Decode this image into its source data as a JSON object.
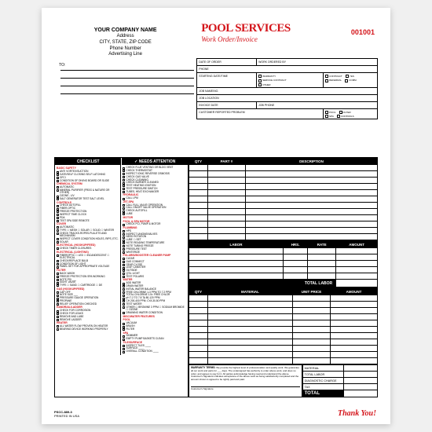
{
  "company": {
    "name": "YOUR COMPANY NAME",
    "address": "Address",
    "csz": "CITY, STATE, ZIP CODE",
    "phone": "Phone Number",
    "adline": "Advertising Line"
  },
  "title1": "POOL SERVICES",
  "title2": "Work Order/Invoice",
  "invoice_num": "001001",
  "to_label": "TO:",
  "meta": {
    "date_of_order": "DATE OF ORDER",
    "work_ordered_by": "WORK ORDERED BY",
    "phone": "PHONE",
    "starting": "STARTING DATE/TIME",
    "warranty": "WARRANTY",
    "service_contract": "SERVICE CONTRACT",
    "other": "OTHER",
    "contract": "CONTRACT",
    "yes": "YES",
    "referral": "REFERRAL",
    "comm": "COMM.",
    "job_name": "JOB NAME/NO.",
    "job_location": "JOB LOCATION",
    "invoice_date": "INVOICE DATE",
    "job_phone": "JOB PHONE",
    "customer_prob": "CUSTOMER REPORTED PROBLEM",
    "pool": "POOL",
    "spa": "SPA",
    "filter": "FILTER",
    "controls": "CONTROLS"
  },
  "headers": {
    "checklist": "CHECKLIST",
    "needs_attention": "NEEDS ATTENTION",
    "check_mark": "✓",
    "qty": "QTY",
    "part": "PART #",
    "description": "DESCRIPTION",
    "labor": "LABOR",
    "hrs": "HRS.",
    "rate": "RATE",
    "amount": "AMOUNT",
    "total_labor": "TOTAL LABOR",
    "material": "MATERIAL",
    "unit_price": "UNIT PRICE"
  },
  "checklist": {
    "col1": [
      {
        "cat": "BASIC SAFETY"
      },
      {
        "item": "ANTI VORTEX/SUCTION"
      },
      {
        "item": "GATE/SELF CLOSING SELF LATCHING"
      },
      {
        "item": "GFCI"
      },
      {
        "item": "CONDITION OF DIVING BOARD OR SLIDE"
      },
      {
        "cat": "CHEMICAL SYSTEM"
      },
      {
        "item": "AUTOMATIC"
      },
      {
        "item": "MINERAL PURIFIER (FROG & NATURE OR OTHER)"
      },
      {
        "item": "OZONE - UV"
      },
      {
        "item": "SALT GENERATOR TEST SALT LEVEL"
      },
      {
        "cat": "CONTROLS"
      },
      {
        "item": "CHECK AUTOFILL"
      },
      {
        "item": "FIBER-OPTIC"
      },
      {
        "item": "FREEZE PROTECTION"
      },
      {
        "item": "INSPECT TIME CLOCK"
      },
      {
        "item": "PDA"
      },
      {
        "item": "TEST SPA SIDE REMOTE"
      },
      {
        "cat": "COVER"
      },
      {
        "item": "AUTOMATIC"
      },
      {
        "item": "TYPE ☐ MESH ☐ SOLAR ☐ SOLID ☐ WINTER"
      },
      {
        "item": "CHECK TRACKS-ROPES-PULLETS AND MECHANISM"
      },
      {
        "item": "INSPECT COVER CONDITION HOLES, RIPS, ETC."
      },
      {
        "item": "SOLAR"
      },
      {
        "cat": "ELECTRICAL (HOOKUP/FEED)"
      },
      {
        "item": "CHECK TIMER CLOSURES"
      },
      {
        "cat": "ELECTRICAL (LIGHTING)"
      },
      {
        "item": "FIBEROPTIC ☐ LED ☐ INCANDESCENT ☐ ELECTRICAL"
      },
      {
        "item": "CHECK/REPLACE BULB"
      },
      {
        "item": "CONDITION OF LIGHT"
      },
      {
        "item": "PANEL SET FOR APPROPRIATE VOLTAGE"
      },
      {
        "cat": "FILTER"
      },
      {
        "item": "BACK WASH"
      },
      {
        "item": "FREEZE PROTECTION SPA WORKING"
      },
      {
        "item": "NOTE PSI ___"
      },
      {
        "item": "SIGHT VALVE"
      },
      {
        "item": "TYPE ☐ SAND ☐ CARTRIDGE ☐ DE"
      },
      {
        "cat": "GAS (HOOKUP/FEED)"
      },
      {
        "item": "CAP OFF"
      },
      {
        "item": "NOTE SIZE ___"
      },
      {
        "item": "PRESSURE GAUGE OPERATION"
      },
      {
        "item": "PROPANE"
      },
      {
        "item": "RELIEF OPERATION CHECKED"
      },
      {
        "cat": "HANDRAIL/LADDER"
      },
      {
        "item": "CHECK FOR CORROSION"
      },
      {
        "item": "CHECK FOR LEAKS"
      },
      {
        "item": "REMOVE AND LUBE"
      },
      {
        "item": "REMOVE LADDER"
      },
      {
        "cat": "HEATER"
      },
      {
        "item": "ALL WATER FLOW PROVEN ON HEATER"
      },
      {
        "item": "BEARING DEVICE WORKING PROPERLY"
      }
    ],
    "col2": [
      {
        "item": "CHECK FLUE VENTING OR BLDG VENT"
      },
      {
        "item": "CHECK THERMOSTAT"
      },
      {
        "item": "INSPECT IONIC REVERSE OSMOSIS"
      },
      {
        "item": "CHECK GAS VALVE"
      },
      {
        "item": "CHECK CLEANING"
      },
      {
        "item": "CHECK BURNER CLEANED"
      },
      {
        "item": "TEST HEATING IGNITION"
      },
      {
        "item": "TEST PRESSURE SWITCH"
      },
      {
        "item": "TUBES, HEAT EXCHANGER"
      },
      {
        "cat": "HYDRAULIC"
      },
      {
        "item": "CALL LPM"
      },
      {
        "cat": "JET-SPA"
      },
      {
        "item": "CALL FULL VALVE OPERATION"
      },
      {
        "item": "CALL ON/OFF VALVE OPERATION"
      },
      {
        "item": "CHECK AUTOFILL"
      },
      {
        "item": "LUBE"
      },
      {
        "cat": "MOTOR"
      },
      {
        "cat": "POOL & SPA MOTOR"
      },
      {
        "item": "CHECK PCI, PUMP & MOTOR"
      },
      {
        "cat": "PLUMBING"
      },
      {
        "item": "HPS"
      },
      {
        "item": "INSPECT UNIONS/VALVES"
      },
      {
        "item": "NEED ROTATION"
      },
      {
        "item": "LUBE ☐ SET"
      },
      {
        "item": "NOTE READING TEMPERATURE"
      },
      {
        "item": "NOTE TUBING FREEZE"
      },
      {
        "item": "PRESSURE TEST"
      },
      {
        "item": "WINTERIZE"
      },
      {
        "cat": "POLARIS/BOOSTER CLEANER PUMP"
      },
      {
        "item": "CLEAR"
      },
      {
        "item": "GAS CONNECT"
      },
      {
        "item": "GEAR CLOSE"
      },
      {
        "item": "LEAF CANISTER"
      },
      {
        "item": "OUTSIDE"
      },
      {
        "item": "QTA: LIGHT"
      },
      {
        "item": "TEST POLARIS"
      },
      {
        "cat": "WATER"
      },
      {
        "item": "ADD WATER"
      },
      {
        "item": "DRAIN WATER"
      },
      {
        "item": "INITIAL WATER BALANCE"
      },
      {
        "item": "FREE CHLORINE 1-3 PPM TO 7.2 PPM"
      },
      {
        "item": "TOTAL CHLORINE 1.5× FREE CHLOR"
      },
      {
        "item": "pH 7.2 TO 7.8 TA 80-120 PPM"
      },
      {
        "item": "CH 200-400 PPM; CYA 30-50 PPM"
      },
      {
        "item": "TEST WATER"
      },
      {
        "item": "OTHER ☐ BROMINE 3 PPM ☐ SODIUM BROMIDE ☐ OZONE"
      },
      {
        "item": "DRAINING WATER CONDITION"
      },
      {
        "cat": "MISC/WATER FEATURES"
      },
      {
        "cat": "POOL"
      },
      {
        "item": "VACUUM"
      },
      {
        "item": "BRUSH"
      },
      {
        "item": "FILTER"
      },
      {
        "cat": "SPA"
      },
      {
        "item": "SKIMMER"
      },
      {
        "item": "EMPTY PUMP BASKETS CLEAN"
      },
      {
        "cat": "TILE/SURFACE"
      },
      {
        "item": "INSPECT TILES ____"
      },
      {
        "item": "SURFACE ____"
      },
      {
        "item": "OVERALL CONDITION ____"
      }
    ]
  },
  "warranty_title": "WARRANTY TERMS:",
  "warranty_text": "We provide the highest level of professionalism and quality work. We guarantee all our work and parts for ___ days. The undersigned has authority to order above work, and does so order, and agrees to pay for it. All parties acknowledge having read and understand the above. Customer's Signature indicates acceptance of the above work as being satisfactorily completed and the amount shown is agreed to be rightly paid and paid.",
  "totals": {
    "material": "MATERIAL",
    "total_labor": "TOTAL LABOR",
    "diag": "DIAGNOSTIC CHARGE",
    "tax": "TAX",
    "total": "TOTAL"
  },
  "footer": {
    "partnum": "PSCC-889-3",
    "printed": "PRINTED IN USA"
  },
  "thanks": "Thank You!",
  "colors": {
    "red": "#d4151b",
    "black": "#000000"
  }
}
